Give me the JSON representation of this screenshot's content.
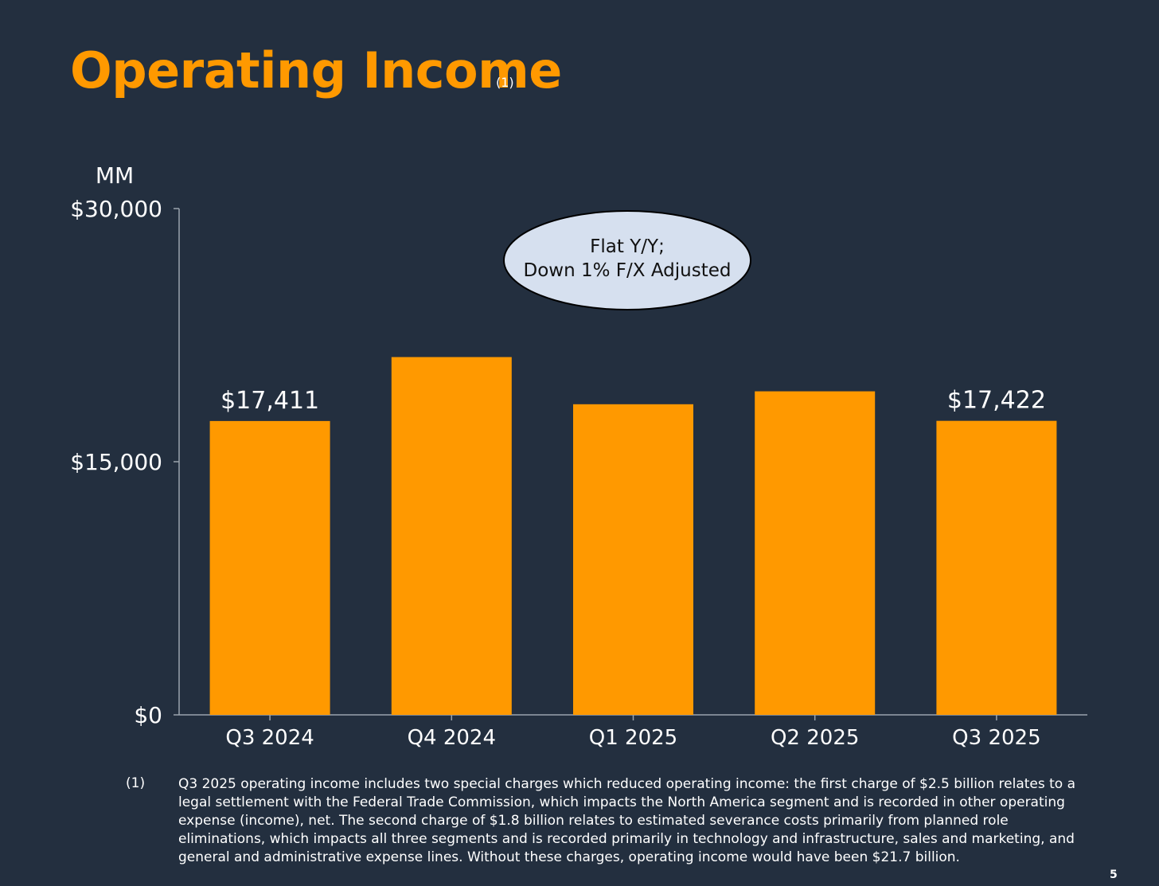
{
  "slide": {
    "title": "Operating Income",
    "title_note": "(1)",
    "footnote_marker": "(1)",
    "footnote_text": "Q3 2025 operating income includes two special charges which reduced operating income: the first charge of $2.5 billion relates to a legal settlement with the Federal Trade Commission, which impacts the North America segment and is recorded in other operating expense (income), net. The second charge of $1.8 billion relates to estimated severance costs primarily from planned role eliminations, which impacts all three segments and is recorded primarily in technology and infrastructure, sales and marketing, and general and administrative expense lines. Without these charges, operating income would have been $21.7 billion.",
    "page_number": "5"
  },
  "colors": {
    "background": "#232f3f",
    "bar": "#ff9900",
    "title": "#ff9900",
    "callout_fill": "#d6e0ef",
    "callout_text": "#111111",
    "axis": "#9aa3ad"
  },
  "chart_data": {
    "type": "bar",
    "title": "Operating Income",
    "ylabel": "MM",
    "xlabel": "",
    "categories": [
      "Q3 2024",
      "Q4 2024",
      "Q1 2025",
      "Q2 2025",
      "Q3 2025"
    ],
    "values": [
      17411,
      21200,
      18405,
      19171,
      17422
    ],
    "data_labels": [
      "$17,411",
      "",
      "",
      "",
      "$17,422"
    ],
    "ylim": [
      0,
      30000
    ],
    "yticks": [
      0,
      15000,
      30000
    ],
    "ytick_labels": [
      "$0",
      "$15,000",
      "$30,000"
    ],
    "grid": false,
    "callout": {
      "lines": [
        "Flat Y/Y;",
        "Down 1% F/X Adjusted"
      ]
    }
  }
}
